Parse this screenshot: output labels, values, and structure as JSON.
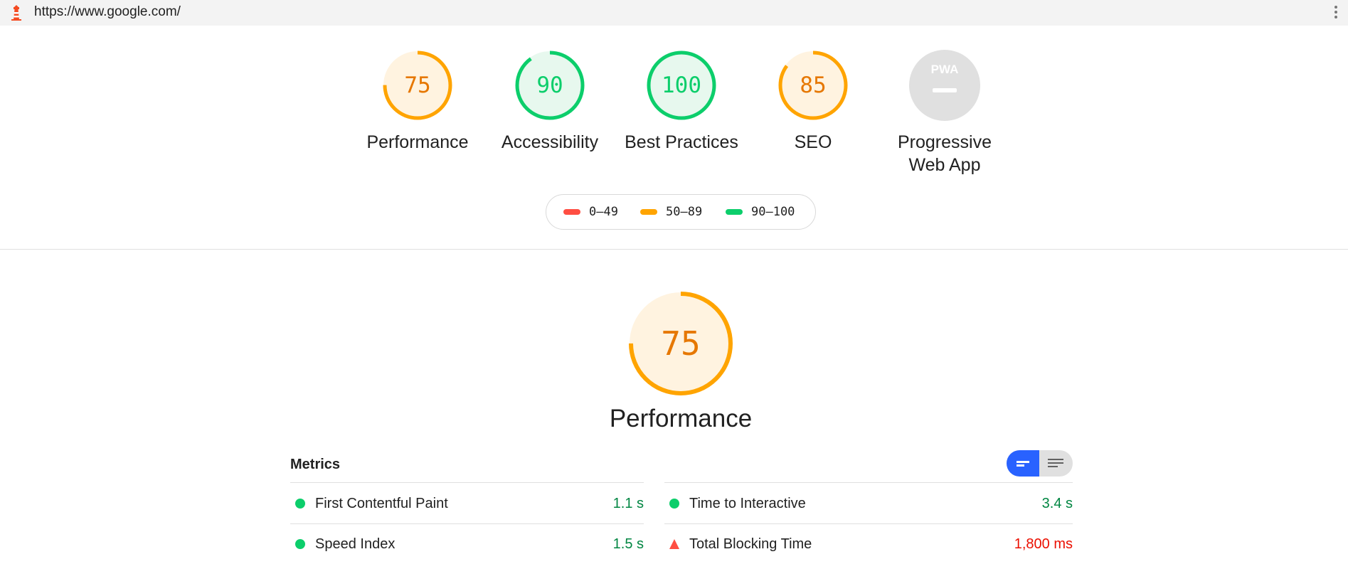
{
  "header": {
    "url": "https://www.google.com/"
  },
  "gauges": [
    {
      "score": "75",
      "label": "Performance",
      "value": 0.75,
      "color": "#ffa400",
      "text_color": "#e67700",
      "bg": "#fff3e0"
    },
    {
      "score": "90",
      "label": "Accessibility",
      "value": 0.9,
      "color": "#0cce6b",
      "text_color": "#0cce6b",
      "bg": "#e7f8ee"
    },
    {
      "score": "100",
      "label": "Best Practices",
      "value": 1.0,
      "color": "#0cce6b",
      "text_color": "#0cce6b",
      "bg": "#e7f8ee"
    },
    {
      "score": "85",
      "label": "SEO",
      "value": 0.85,
      "color": "#ffa400",
      "text_color": "#e67700",
      "bg": "#fff3e0"
    }
  ],
  "pwa": {
    "label_line1": "Progressive",
    "label_line2": "Web App",
    "badge_text": "PWA"
  },
  "legend": [
    {
      "label": "0–49",
      "color": "#ff4e42"
    },
    {
      "label": "50–89",
      "color": "#ffa400"
    },
    {
      "label": "90–100",
      "color": "#0cce6b"
    }
  ],
  "performance": {
    "score": "75",
    "value": 0.75,
    "title": "Performance",
    "color": "#ffa400",
    "bg": "#fff3e0"
  },
  "metrics": {
    "heading": "Metrics",
    "items": [
      {
        "name": "First Contentful Paint",
        "value": "1.1 s",
        "status": "pass"
      },
      {
        "name": "Time to Interactive",
        "value": "3.4 s",
        "status": "pass"
      },
      {
        "name": "Speed Index",
        "value": "1.5 s",
        "status": "pass"
      },
      {
        "name": "Total Blocking Time",
        "value": "1,800 ms",
        "status": "fail"
      }
    ]
  },
  "colors": {
    "pass": "#0cce6b",
    "pass_text": "#018642",
    "fail": "#ff4e42",
    "fail_text": "#eb0f00",
    "toggle_active": "#2962ff"
  }
}
